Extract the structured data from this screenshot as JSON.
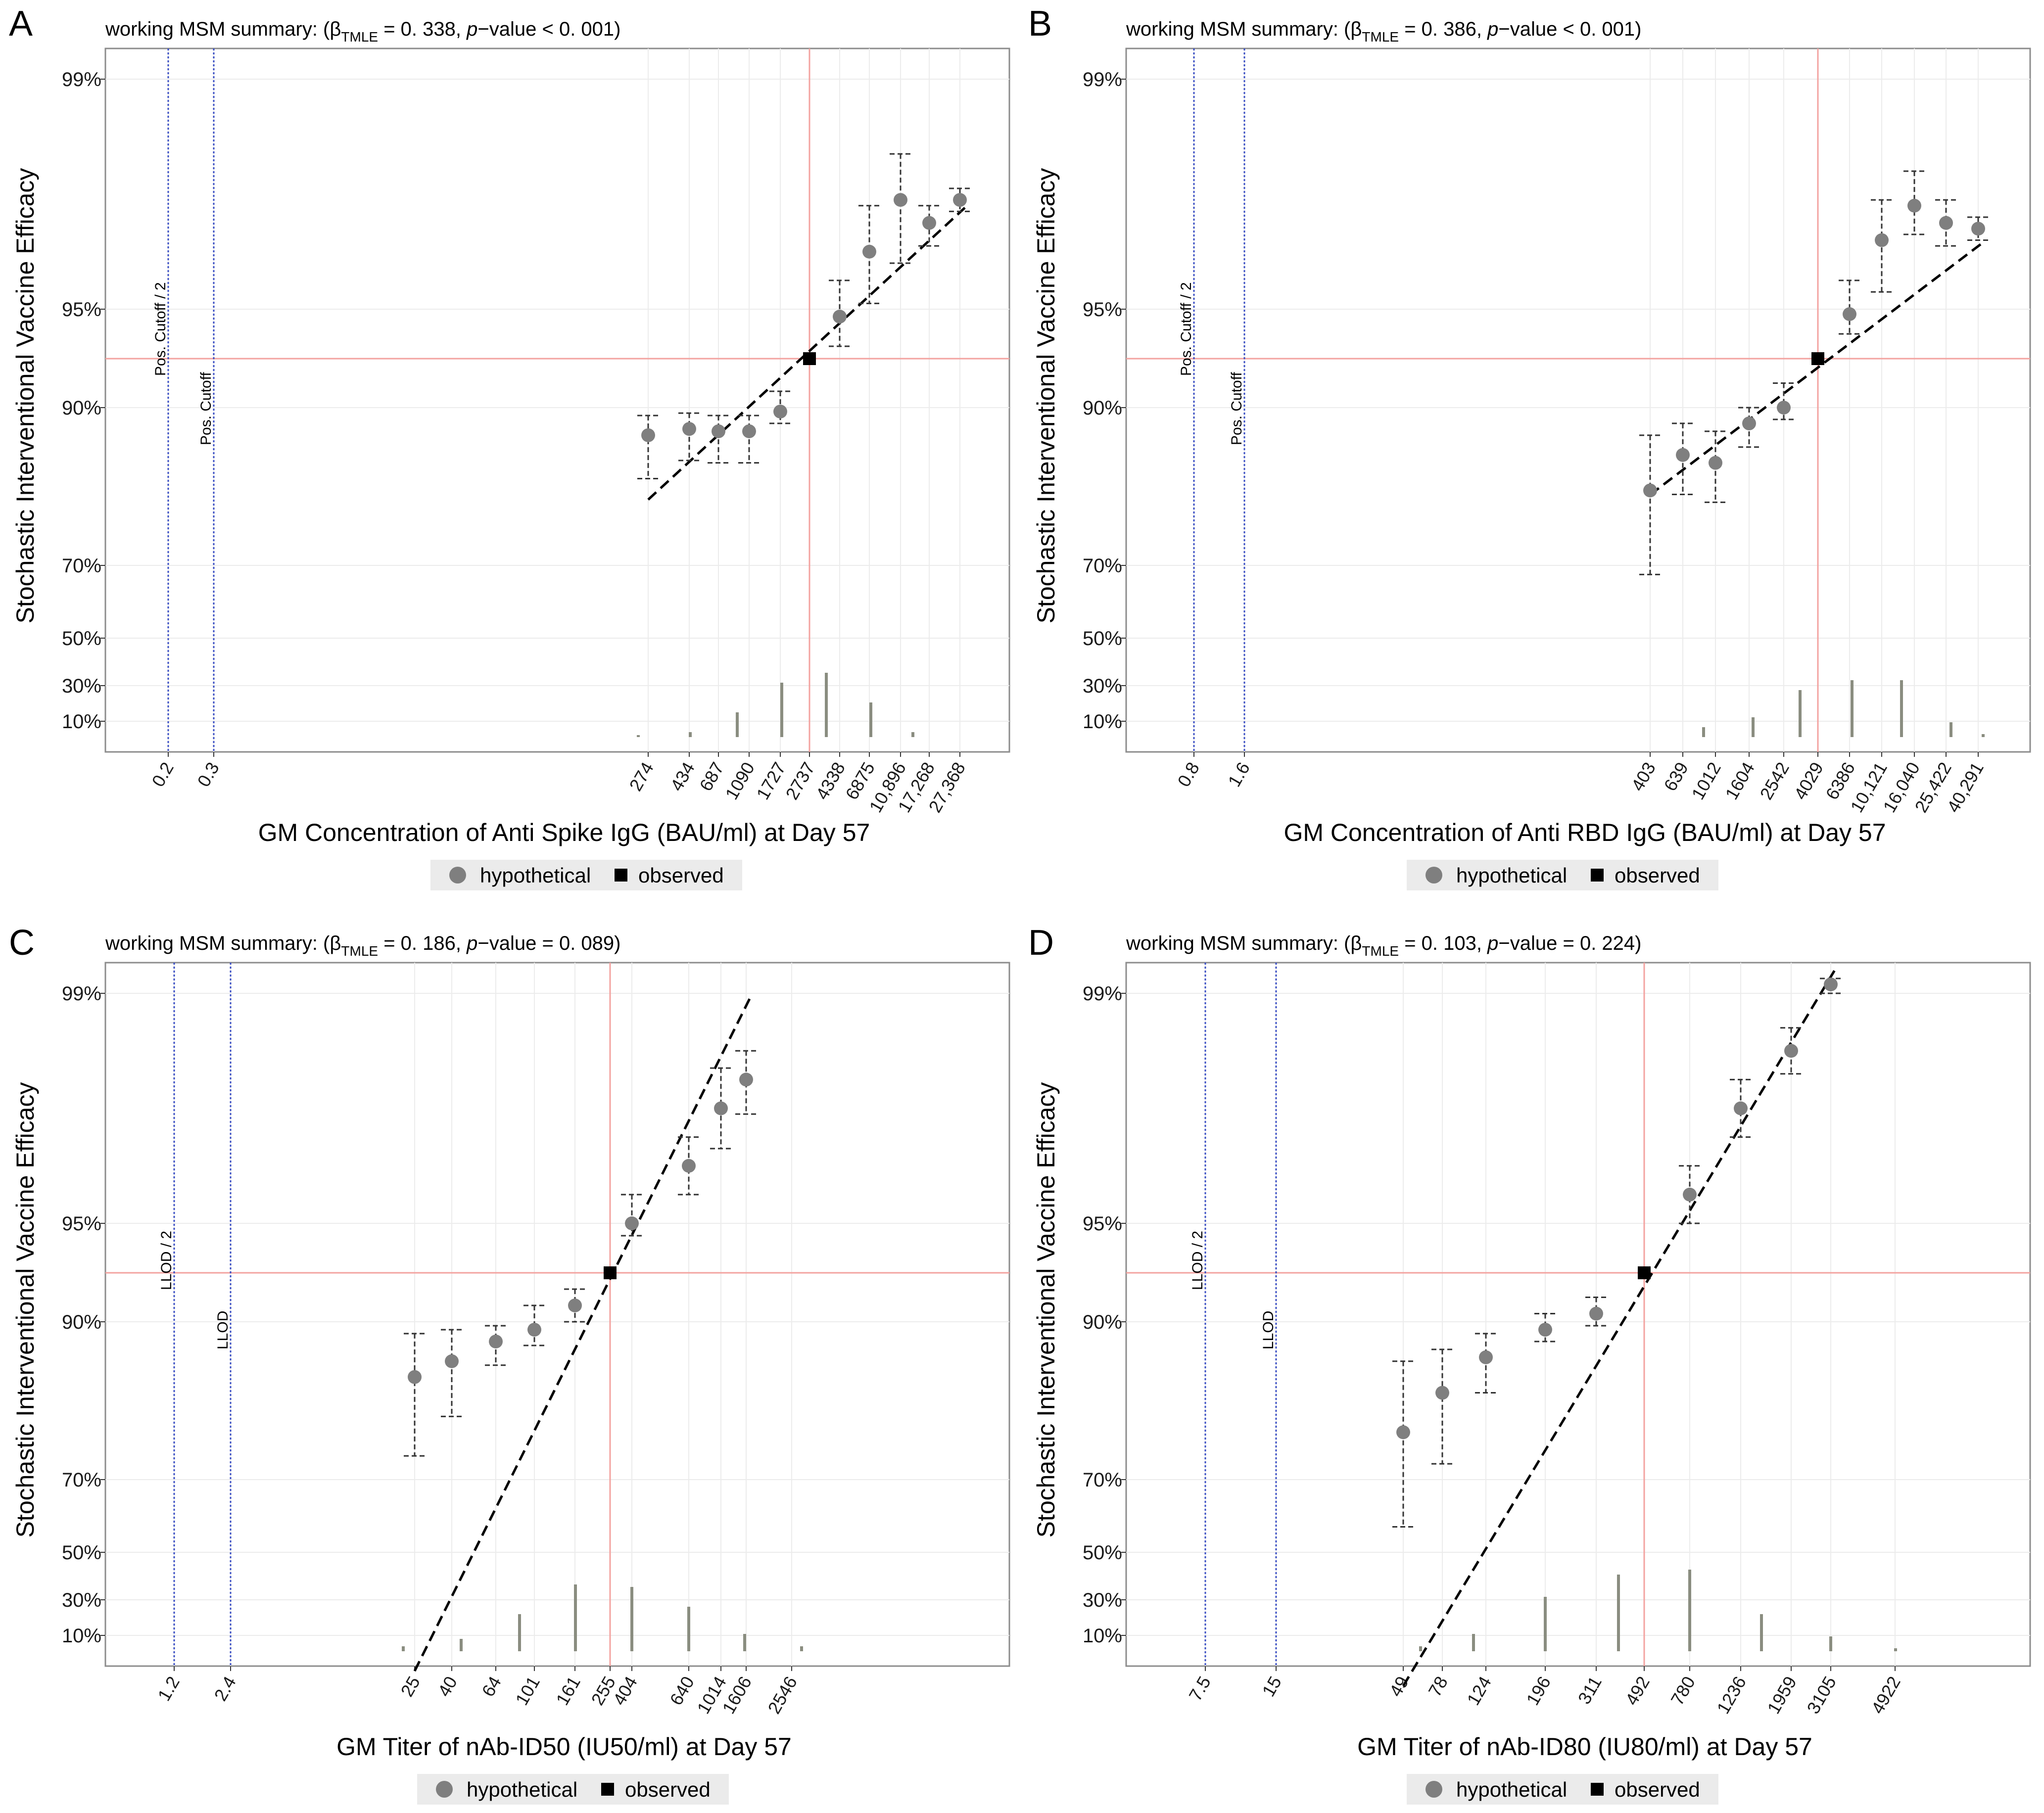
{
  "chart_data": [
    {
      "type": "scatter",
      "panel": "A",
      "summary_prefix": "working MSM summary: (",
      "beta_hat": "β",
      "beta_sub": "TMLE",
      "summary_value": " = 0. 338, ",
      "pvalue_italic": "p",
      "summary_suffix": "−value < 0. 001)",
      "xlabel": "GM Concentration of Anti Spike IgG (BAU/ml) at Day 57",
      "ylabel": "Stochastic Interventional Vaccine Efficacy",
      "y_ticks": [
        "99%",
        "95%",
        "90%",
        "70%",
        "50%",
        "30%",
        "10%"
      ],
      "x_ticks": [
        "0.2",
        "0.3",
        "274",
        "434",
        "687",
        "1090",
        "1727",
        "2737",
        "4338",
        "6875",
        "10,896",
        "17,268",
        "27,368"
      ],
      "cutoffs": [
        {
          "label": "Pos. Cutoff / 2",
          "x": "0.2"
        },
        {
          "label": "Pos. Cutoff",
          "x": "0.3"
        }
      ],
      "observed": {
        "x": 2737,
        "y": "93%"
      },
      "hypothetical": [
        {
          "x": 274,
          "y": 86.5,
          "lo": 81,
          "hi": 89
        },
        {
          "x": 434,
          "y": 87.3,
          "lo": 83.3,
          "hi": 89.3
        },
        {
          "x": 687,
          "y": 87.0,
          "lo": 83.0,
          "hi": 89.0
        },
        {
          "x": 1090,
          "y": 87.0,
          "lo": 83.0,
          "hi": 89.0
        },
        {
          "x": 1727,
          "y": 89.5,
          "lo": 88.0,
          "hi": 91.0
        },
        {
          "x": 4338,
          "y": 94.7,
          "lo": 93.5,
          "hi": 95.5
        },
        {
          "x": 6875,
          "y": 96.0,
          "lo": 95.1,
          "hi": 96.8
        },
        {
          "x": 10896,
          "y": 96.9,
          "lo": 95.8,
          "hi": 97.7
        },
        {
          "x": 17268,
          "y": 96.5,
          "lo": 96.1,
          "hi": 96.8
        },
        {
          "x": 27368,
          "y": 96.9,
          "lo": 96.7,
          "hi": 97.1
        }
      ],
      "legend": [
        "hypothetical",
        "observed"
      ]
    },
    {
      "type": "scatter",
      "panel": "B",
      "summary_prefix": "working MSM summary: (",
      "beta_hat": "β",
      "beta_sub": "TMLE",
      "summary_value": " = 0. 386, ",
      "pvalue_italic": "p",
      "summary_suffix": "−value < 0. 001)",
      "xlabel": "GM Concentration of Anti RBD IgG (BAU/ml) at Day 57",
      "ylabel": "Stochastic Interventional Vaccine Efficacy",
      "y_ticks": [
        "99%",
        "95%",
        "90%",
        "70%",
        "50%",
        "30%",
        "10%"
      ],
      "x_ticks": [
        "0.8",
        "1.6",
        "403",
        "639",
        "1012",
        "1604",
        "2542",
        "4029",
        "6386",
        "10,121",
        "16,040",
        "25,422",
        "40,291"
      ],
      "cutoffs": [
        {
          "label": "Pos. Cutoff / 2",
          "x": "0.8"
        },
        {
          "label": "Pos. Cutoff",
          "x": "1.6"
        }
      ],
      "observed": {
        "x": 4029,
        "y": "93%"
      },
      "hypothetical": [
        {
          "x": 403,
          "y": 79.5,
          "lo": 67.5,
          "hi": 86.5
        },
        {
          "x": 639,
          "y": 84.0,
          "lo": 79.0,
          "hi": 88.0
        },
        {
          "x": 1012,
          "y": 83.0,
          "lo": 78.0,
          "hi": 87.0
        },
        {
          "x": 1604,
          "y": 88.0,
          "lo": 85.0,
          "hi": 90.0
        },
        {
          "x": 2542,
          "y": 90.0,
          "lo": 88.5,
          "hi": 91.5
        },
        {
          "x": 6386,
          "y": 94.8,
          "lo": 94.0,
          "hi": 95.5
        },
        {
          "x": 10121,
          "y": 96.2,
          "lo": 95.3,
          "hi": 96.9
        },
        {
          "x": 16040,
          "y": 96.8,
          "lo": 96.3,
          "hi": 97.4
        },
        {
          "x": 25422,
          "y": 96.5,
          "lo": 96.1,
          "hi": 96.9
        },
        {
          "x": 40291,
          "y": 96.4,
          "lo": 96.2,
          "hi": 96.6
        }
      ],
      "legend": [
        "hypothetical",
        "observed"
      ]
    },
    {
      "type": "scatter",
      "panel": "C",
      "summary_prefix": "working MSM summary: (",
      "beta_hat": "β",
      "beta_sub": "TMLE",
      "summary_value": " = 0. 186, ",
      "pvalue_italic": "p",
      "summary_suffix": "−value = 0. 089)",
      "xlabel": "GM Titer of nAb-ID50 (IU50/ml) at Day 57",
      "ylabel": "Stochastic Interventional Vaccine Efficacy",
      "y_ticks": [
        "99%",
        "95%",
        "90%",
        "70%",
        "50%",
        "30%",
        "10%"
      ],
      "x_ticks": [
        "1.2",
        "2.4",
        "25",
        "40",
        "64",
        "101",
        "161",
        "255",
        "404",
        "640",
        "1014",
        "1606",
        "2546"
      ],
      "cutoffs": [
        {
          "label": "LLOD / 2",
          "x": "1.2"
        },
        {
          "label": "LLOD",
          "x": "2.4"
        }
      ],
      "observed": {
        "x": 255,
        "y": "93%"
      },
      "hypothetical": [
        {
          "x": 25,
          "y": 83.0,
          "lo": 73.0,
          "hi": 88.5
        },
        {
          "x": 40,
          "y": 85.0,
          "lo": 78.0,
          "hi": 89.0
        },
        {
          "x": 64,
          "y": 87.5,
          "lo": 84.5,
          "hi": 89.5
        },
        {
          "x": 101,
          "y": 89.0,
          "lo": 87.0,
          "hi": 91.0
        },
        {
          "x": 161,
          "y": 91.0,
          "lo": 90.0,
          "hi": 92.0
        },
        {
          "x": 404,
          "y": 95.0,
          "lo": 94.5,
          "hi": 95.5
        },
        {
          "x": 640,
          "y": 96.0,
          "lo": 95.5,
          "hi": 96.5
        },
        {
          "x": 1014,
          "y": 97.0,
          "lo": 96.3,
          "hi": 97.7
        },
        {
          "x": 1606,
          "y": 97.5,
          "lo": 96.9,
          "hi": 98.0
        }
      ],
      "legend": [
        "hypothetical",
        "observed"
      ]
    },
    {
      "type": "scatter",
      "panel": "D",
      "summary_prefix": "working MSM summary: (",
      "beta_hat": "β",
      "beta_sub": "TMLE",
      "summary_value": " = 0. 103, ",
      "pvalue_italic": "p",
      "summary_suffix": "−value = 0. 224)",
      "xlabel": "GM Titer of nAb-ID80 (IU80/ml) at Day 57",
      "ylabel": "Stochastic Interventional Vaccine Efficacy",
      "y_ticks": [
        "99%",
        "95%",
        "90%",
        "70%",
        "50%",
        "30%",
        "10%"
      ],
      "x_ticks": [
        "7.5",
        "15",
        "49",
        "78",
        "124",
        "196",
        "311",
        "492",
        "780",
        "1236",
        "1959",
        "3105",
        "4922"
      ],
      "cutoffs": [
        {
          "label": "LLOD / 2",
          "x": "7.5"
        },
        {
          "label": "LLOD",
          "x": "15"
        }
      ],
      "observed": {
        "x": 492,
        "y": "93%"
      },
      "hypothetical": [
        {
          "x": 49,
          "y": 76.0,
          "lo": 57.0,
          "hi": 85.0
        },
        {
          "x": 78,
          "y": 81.0,
          "lo": 72.0,
          "hi": 86.5
        },
        {
          "x": 124,
          "y": 85.5,
          "lo": 81.0,
          "hi": 88.5
        },
        {
          "x": 196,
          "y": 89.0,
          "lo": 87.5,
          "hi": 90.5
        },
        {
          "x": 311,
          "y": 90.5,
          "lo": 89.5,
          "hi": 91.5
        },
        {
          "x": 780,
          "y": 95.5,
          "lo": 95.0,
          "hi": 96.0
        },
        {
          "x": 1236,
          "y": 97.0,
          "lo": 96.5,
          "hi": 97.5
        },
        {
          "x": 1959,
          "y": 98.0,
          "lo": 97.6,
          "hi": 98.4
        },
        {
          "x": 3105,
          "y": 99.3,
          "lo": 99.0,
          "hi": 99.5
        }
      ],
      "legend": [
        "hypothetical",
        "observed"
      ]
    }
  ]
}
